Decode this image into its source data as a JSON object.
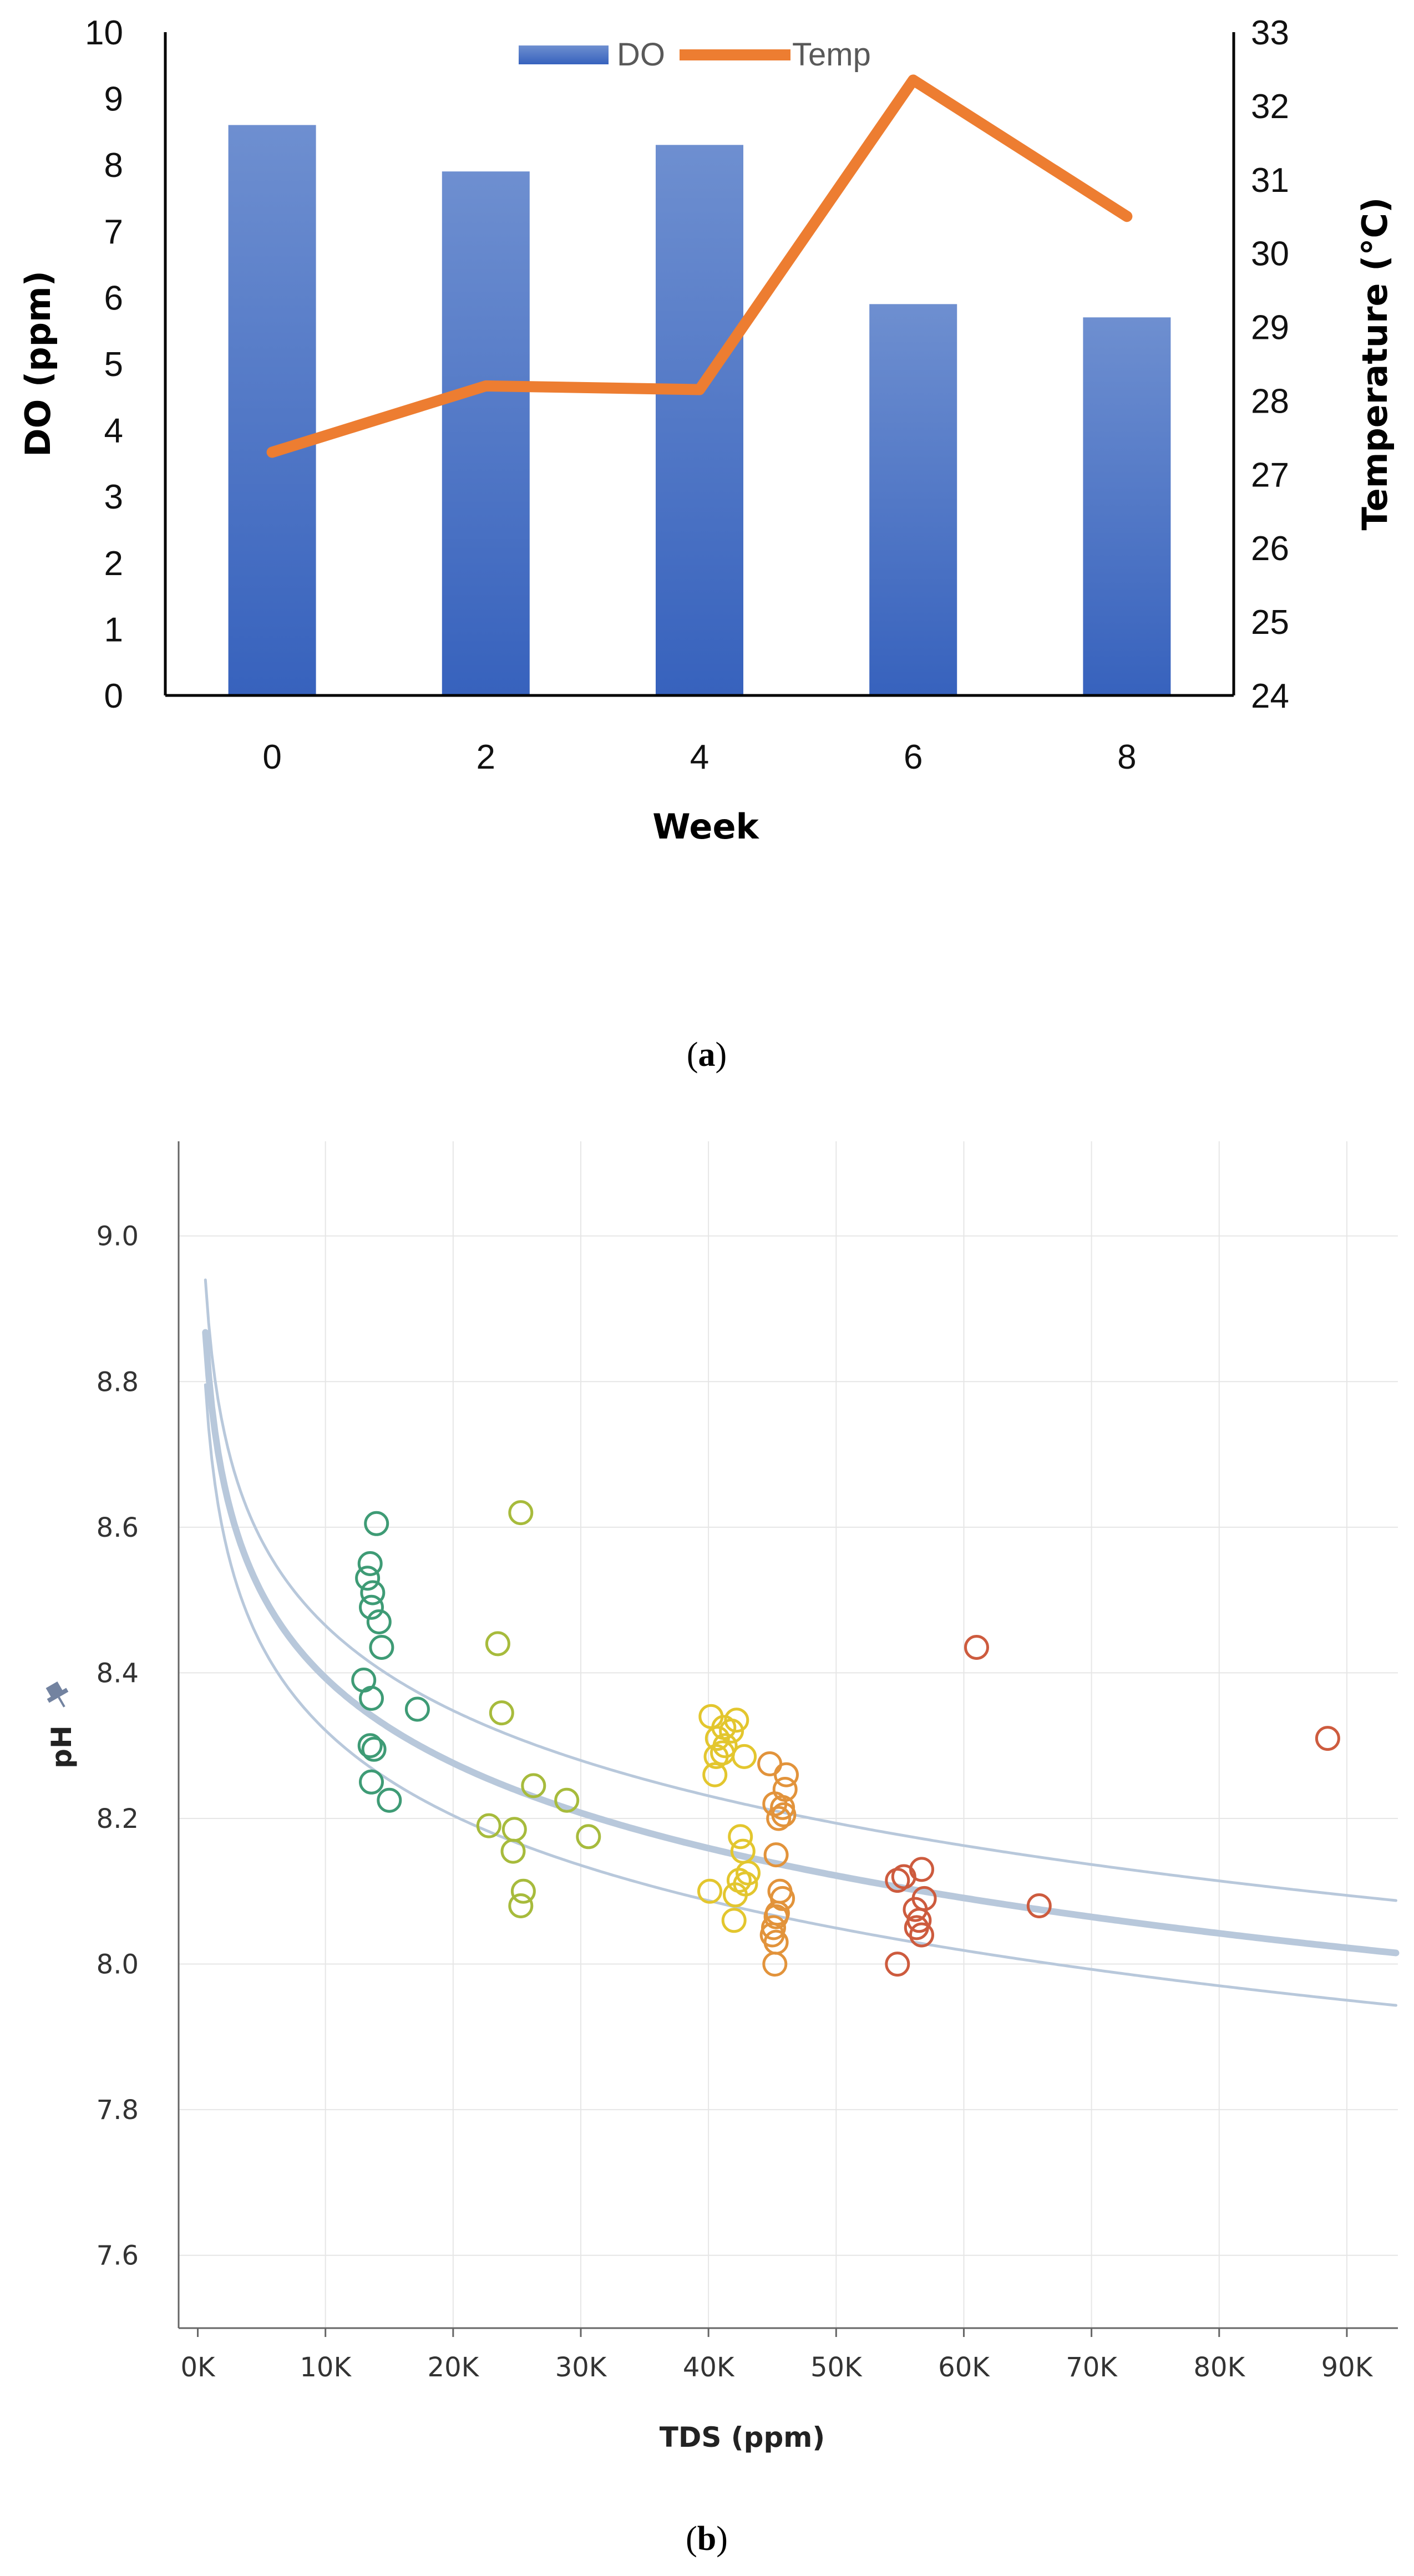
{
  "chart_data": [
    {
      "type": "bar",
      "panel_label": "a",
      "categories": [
        "0",
        "2",
        "4",
        "6",
        "8"
      ],
      "series": [
        {
          "name": "DO",
          "kind": "bar",
          "axis": "left",
          "color": "#4472C4",
          "values": [
            8.6,
            7.9,
            8.3,
            5.9,
            5.7
          ]
        },
        {
          "name": "Temp",
          "kind": "line",
          "axis": "right",
          "color": "#ED7D31",
          "values": [
            27.3,
            28.2,
            28.15,
            32.35,
            30.5
          ]
        }
      ],
      "xlabel": "Week",
      "ylabel": "DO (ppm)",
      "y2label": "Temperature (°C)",
      "ylim": [
        0,
        10
      ],
      "y2lim": [
        24,
        33
      ],
      "yticks": [
        "0",
        "1",
        "2",
        "3",
        "4",
        "5",
        "6",
        "7",
        "8",
        "9",
        "10"
      ],
      "y2ticks": [
        "24",
        "25",
        "26",
        "27",
        "28",
        "29",
        "30",
        "31",
        "32",
        "33"
      ],
      "legend": "top-center",
      "grid": false
    },
    {
      "type": "scatter",
      "panel_label": "b",
      "xlabel": "TDS (ppm)",
      "ylabel": "pH",
      "ylabel_icon": "pin-icon",
      "xlim": [
        -1500,
        94000
      ],
      "ylim": [
        7.5,
        9.13
      ],
      "xticks": [
        "0K",
        "10K",
        "20K",
        "30K",
        "40K",
        "50K",
        "60K",
        "70K",
        "80K",
        "90K"
      ],
      "yticks": [
        "7.6",
        "7.8",
        "8.0",
        "8.2",
        "8.4",
        "8.6",
        "8.8",
        "9.0"
      ],
      "grid": true,
      "color_scale": [
        "#3E9B75",
        "#A7BB3C",
        "#E3C62E",
        "#E2933B",
        "#CD5B3E"
      ],
      "trend": {
        "name": "log fit",
        "color": "#B8C8DB",
        "center_at_10k": 8.393,
        "slope_per_ln": -0.1687,
        "band_offset": 0.072,
        "x_start": 600
      },
      "points": [
        [
          14000,
          8.605
        ],
        [
          13500,
          8.55
        ],
        [
          13300,
          8.53
        ],
        [
          13700,
          8.51
        ],
        [
          13600,
          8.49
        ],
        [
          14200,
          8.47
        ],
        [
          14400,
          8.435
        ],
        [
          13000,
          8.39
        ],
        [
          13600,
          8.365
        ],
        [
          13500,
          8.3
        ],
        [
          13800,
          8.295
        ],
        [
          13600,
          8.25
        ],
        [
          15000,
          8.225
        ],
        [
          17200,
          8.35
        ],
        [
          25300,
          8.62
        ],
        [
          23500,
          8.44
        ],
        [
          23800,
          8.345
        ],
        [
          22800,
          8.19
        ],
        [
          24800,
          8.185
        ],
        [
          24700,
          8.155
        ],
        [
          25500,
          8.1
        ],
        [
          25300,
          8.08
        ],
        [
          26300,
          8.245
        ],
        [
          28900,
          8.225
        ],
        [
          30600,
          8.175
        ],
        [
          40200,
          8.34
        ],
        [
          41200,
          8.325
        ],
        [
          42200,
          8.335
        ],
        [
          41800,
          8.32
        ],
        [
          40700,
          8.31
        ],
        [
          41300,
          8.3
        ],
        [
          41100,
          8.29
        ],
        [
          40600,
          8.285
        ],
        [
          42800,
          8.285
        ],
        [
          40500,
          8.26
        ],
        [
          40100,
          8.1
        ],
        [
          42500,
          8.175
        ],
        [
          42700,
          8.155
        ],
        [
          43100,
          8.125
        ],
        [
          42400,
          8.115
        ],
        [
          42900,
          8.11
        ],
        [
          42100,
          8.095
        ],
        [
          42000,
          8.06
        ],
        [
          44800,
          8.275
        ],
        [
          46100,
          8.26
        ],
        [
          46000,
          8.24
        ],
        [
          45200,
          8.22
        ],
        [
          45800,
          8.215
        ],
        [
          45900,
          8.205
        ],
        [
          45500,
          8.2
        ],
        [
          45300,
          8.15
        ],
        [
          45600,
          8.1
        ],
        [
          45800,
          8.09
        ],
        [
          45400,
          8.07
        ],
        [
          45300,
          8.065
        ],
        [
          45100,
          8.05
        ],
        [
          45000,
          8.04
        ],
        [
          45300,
          8.03
        ],
        [
          45200,
          8.0
        ],
        [
          54800,
          8.115
        ],
        [
          55300,
          8.12
        ],
        [
          56700,
          8.13
        ],
        [
          56900,
          8.09
        ],
        [
          56200,
          8.075
        ],
        [
          56500,
          8.06
        ],
        [
          56300,
          8.05
        ],
        [
          56700,
          8.04
        ],
        [
          54800,
          8.0
        ],
        [
          65900,
          8.08
        ],
        [
          61000,
          8.435
        ],
        [
          88500,
          8.31
        ]
      ]
    }
  ],
  "captions": {
    "a": "a",
    "b": "b"
  }
}
